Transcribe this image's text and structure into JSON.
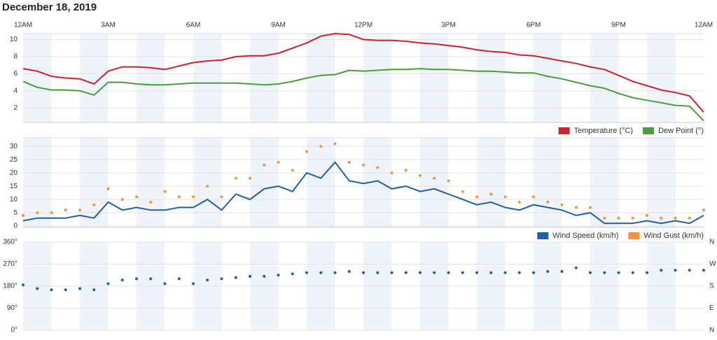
{
  "title": "December 18, 2019",
  "chart_data": [
    {
      "type": "line",
      "x": [
        0,
        0.5,
        1,
        1.5,
        2,
        2.5,
        3,
        3.5,
        4,
        4.5,
        5,
        5.5,
        6,
        6.5,
        7,
        7.5,
        8,
        8.5,
        9,
        9.5,
        10,
        10.5,
        11,
        11.5,
        12,
        12.5,
        13,
        13.5,
        14,
        14.5,
        15,
        15.5,
        16,
        16.5,
        17,
        17.5,
        18,
        18.5,
        19,
        19.5,
        20,
        20.5,
        21,
        21.5,
        22,
        22.5,
        23,
        23.5,
        24
      ],
      "xlim": [
        0,
        24
      ],
      "xticks": [
        {
          "value": 0,
          "label": "12AM"
        },
        {
          "value": 3,
          "label": "3AM"
        },
        {
          "value": 6,
          "label": "6AM"
        },
        {
          "value": 9,
          "label": "9AM"
        },
        {
          "value": 12,
          "label": "12PM"
        },
        {
          "value": 15,
          "label": "3PM"
        },
        {
          "value": 18,
          "label": "6PM"
        },
        {
          "value": 21,
          "label": "9PM"
        },
        {
          "value": 24,
          "label": "12AM"
        }
      ],
      "ylim": [
        0.3,
        10.7
      ],
      "yticks": [
        2,
        4,
        6,
        8,
        10
      ],
      "grid": true,
      "legend": "bottom-right",
      "series": [
        {
          "name": "Temperature (°C)",
          "color": "#d0202a",
          "values": [
            6.6,
            6.3,
            5.7,
            5.5,
            5.4,
            4.8,
            6.3,
            6.8,
            6.8,
            6.7,
            6.5,
            6.9,
            7.3,
            7.5,
            7.6,
            8.0,
            8.1,
            8.1,
            8.4,
            9.0,
            9.6,
            10.4,
            10.7,
            10.6,
            10.0,
            9.9,
            9.9,
            9.8,
            9.6,
            9.5,
            9.3,
            9.1,
            8.8,
            8.6,
            8.5,
            8.2,
            8.1,
            7.8,
            7.5,
            7.2,
            6.8,
            6.5,
            5.8,
            5.1,
            4.6,
            4.1,
            3.8,
            3.4,
            1.5
          ]
        },
        {
          "name": "Dew Point (°)",
          "color": "#4a9e3c",
          "values": [
            5.1,
            4.4,
            4.1,
            4.1,
            4.0,
            3.5,
            5.0,
            5.0,
            4.8,
            4.7,
            4.7,
            4.8,
            4.9,
            4.9,
            4.9,
            4.9,
            4.8,
            4.7,
            4.8,
            5.1,
            5.5,
            5.8,
            5.9,
            6.4,
            6.3,
            6.4,
            6.5,
            6.5,
            6.6,
            6.5,
            6.5,
            6.4,
            6.3,
            6.3,
            6.2,
            6.1,
            6.1,
            5.7,
            5.4,
            5.0,
            4.6,
            4.3,
            3.7,
            3.2,
            2.9,
            2.6,
            2.3,
            2.2,
            0.5
          ]
        }
      ]
    },
    {
      "type": "line",
      "x": [
        0,
        0.5,
        1,
        1.5,
        2,
        2.5,
        3,
        3.5,
        4,
        4.5,
        5,
        5.5,
        6,
        6.5,
        7,
        7.5,
        8,
        8.5,
        9,
        9.5,
        10,
        10.5,
        11,
        11.5,
        12,
        12.5,
        13,
        13.5,
        14,
        14.5,
        15,
        15.5,
        16,
        16.5,
        17,
        17.5,
        18,
        18.5,
        19,
        19.5,
        20,
        20.5,
        21,
        21.5,
        22,
        22.5,
        23,
        23.5,
        24
      ],
      "xlim": [
        0,
        24
      ],
      "ylim": [
        -0.5,
        33.2
      ],
      "yticks": [
        0,
        5,
        10,
        15,
        20,
        25,
        30
      ],
      "grid": true,
      "legend": "bottom-right",
      "series": [
        {
          "name": "Wind Speed (km/h)",
          "color": "#1f5fa6",
          "values": [
            2,
            3,
            3,
            3,
            4,
            3,
            9,
            6,
            7,
            6,
            6,
            7,
            7,
            10,
            6,
            12,
            10,
            14,
            15,
            13,
            20,
            18,
            24,
            17,
            16,
            17,
            14,
            15,
            13,
            14,
            12,
            10,
            8,
            9,
            7,
            6,
            8,
            7,
            6,
            4,
            5,
            1,
            1,
            1,
            2,
            1,
            2,
            1,
            4
          ]
        },
        {
          "name": "Wind Gust (km/h)",
          "color": "#f7923a",
          "type": "scatter",
          "values": [
            4,
            5,
            5,
            6,
            6,
            8,
            14,
            10,
            11,
            9,
            13,
            11,
            11,
            15,
            11,
            18,
            18,
            23,
            24,
            21,
            28,
            30,
            31,
            24,
            23,
            22,
            20,
            21,
            19,
            18,
            17,
            13,
            11,
            12,
            11,
            9,
            11,
            9,
            8,
            7,
            7,
            3,
            3,
            3,
            4,
            3,
            3,
            3,
            6
          ]
        }
      ]
    },
    {
      "type": "scatter",
      "x": [
        0,
        0.5,
        1,
        1.5,
        2,
        2.5,
        3,
        3.5,
        4,
        4.5,
        5,
        5.5,
        6,
        6.5,
        7,
        7.5,
        8,
        8.5,
        9,
        9.5,
        10,
        10.5,
        11,
        11.5,
        12,
        12.5,
        13,
        13.5,
        14,
        14.5,
        15,
        15.5,
        16,
        16.5,
        17,
        17.5,
        18,
        18.5,
        19,
        19.5,
        20,
        20.5,
        21,
        21.5,
        22,
        22.5,
        23,
        23.5,
        24
      ],
      "xlim": [
        0,
        24
      ],
      "ylim": [
        0,
        360
      ],
      "yticks": [
        {
          "value": 0,
          "label": "0°"
        },
        {
          "value": 90,
          "label": "90°"
        },
        {
          "value": 180,
          "label": "180°"
        },
        {
          "value": 270,
          "label": "270°"
        },
        {
          "value": 360,
          "label": "360°"
        }
      ],
      "y2lim": [
        0,
        360
      ],
      "y2ticks": [
        {
          "value": 0,
          "label": "N"
        },
        {
          "value": 90,
          "label": "E"
        },
        {
          "value": 180,
          "label": "S"
        },
        {
          "value": 270,
          "label": "W"
        },
        {
          "value": 360,
          "label": "N"
        }
      ],
      "grid": true,
      "series": [
        {
          "color": "#1f5fa6",
          "values": [
            185,
            170,
            165,
            165,
            170,
            165,
            190,
            205,
            210,
            210,
            190,
            210,
            190,
            205,
            210,
            215,
            220,
            220,
            225,
            230,
            235,
            235,
            235,
            240,
            235,
            235,
            235,
            235,
            235,
            235,
            235,
            235,
            235,
            235,
            235,
            235,
            235,
            240,
            240,
            255,
            235,
            235,
            235,
            235,
            235,
            245,
            245,
            245,
            245
          ]
        }
      ]
    }
  ]
}
